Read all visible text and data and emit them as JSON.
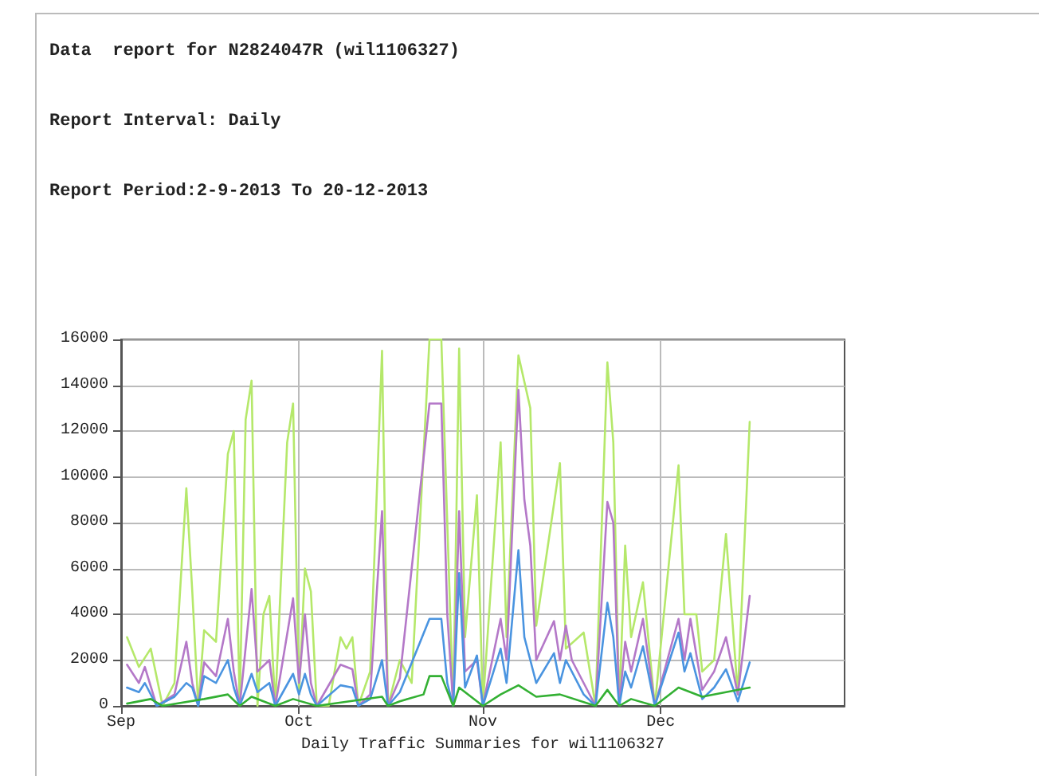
{
  "chart_data": {
    "type": "line",
    "title": "Data  report for N2824047R (wil1106327)",
    "subtitle": "Report Interval: Daily",
    "annotations": [
      "Report Period:2-9-2013 To 20-12-2013"
    ],
    "xlabel": "Daily Traffic Summaries for wil1106327",
    "xlim": [
      "2013-09-01",
      "2014-01-01"
    ],
    "xticks": [
      {
        "value": "2013-09-01",
        "label": "Sep"
      },
      {
        "value": "2013-10-01",
        "label": "Oct"
      },
      {
        "value": "2013-11-01",
        "label": "Nov"
      },
      {
        "value": "2013-12-01",
        "label": "Dec"
      }
    ],
    "ylim": [
      0,
      16000
    ],
    "yticks": [
      0,
      2000,
      4000,
      6000,
      8000,
      10000,
      12000,
      14000,
      16000
    ],
    "grid": true,
    "marker": "none",
    "line_style": "solid",
    "series": [
      {
        "color": "#b5e86a",
        "x": [
          "2013-09-02",
          "2013-09-04",
          "2013-09-06",
          "2013-09-08",
          "2013-09-10",
          "2013-09-12",
          "2013-09-13",
          "2013-09-14",
          "2013-09-15",
          "2013-09-17",
          "2013-09-19",
          "2013-09-20",
          "2013-09-21",
          "2013-09-22",
          "2013-09-23",
          "2013-09-24",
          "2013-09-25",
          "2013-09-26",
          "2013-09-27",
          "2013-09-29",
          "2013-09-30",
          "2013-10-01",
          "2013-10-02",
          "2013-10-03",
          "2013-10-04",
          "2013-10-06",
          "2013-10-08",
          "2013-10-09",
          "2013-10-10",
          "2013-10-11",
          "2013-10-13",
          "2013-10-15",
          "2013-10-16",
          "2013-10-18",
          "2013-10-20",
          "2013-10-23",
          "2013-10-25",
          "2013-10-27",
          "2013-10-28",
          "2013-10-29",
          "2013-10-31",
          "2013-11-01",
          "2013-11-04",
          "2013-11-05",
          "2013-11-07",
          "2013-11-09",
          "2013-11-10",
          "2013-11-14",
          "2013-11-15",
          "2013-11-18",
          "2013-11-20",
          "2013-11-22",
          "2013-11-23",
          "2013-11-24",
          "2013-11-25",
          "2013-11-26",
          "2013-11-28",
          "2013-11-30",
          "2013-12-04",
          "2013-12-05",
          "2013-12-07",
          "2013-12-08",
          "2013-12-10",
          "2013-12-12",
          "2013-12-14",
          "2013-12-16"
        ],
        "values": [
          3000,
          1700,
          2500,
          0,
          1000,
          9500,
          5000,
          0,
          3300,
          2800,
          11000,
          12000,
          0,
          12500,
          14200,
          0,
          4000,
          4800,
          0,
          11500,
          13200,
          500,
          6000,
          5000,
          0,
          0,
          3000,
          2500,
          3000,
          0,
          1500,
          15500,
          0,
          2000,
          1000,
          16000,
          16000,
          0,
          15600,
          3000,
          9200,
          0,
          11500,
          3000,
          15300,
          13000,
          3500,
          10600,
          2500,
          3200,
          0,
          15000,
          11500,
          0,
          7000,
          3000,
          5400,
          0,
          10500,
          4000,
          4000,
          1500,
          2000,
          7500,
          500,
          12400
        ]
      },
      {
        "color": "#b478c8",
        "x": [
          "2013-09-02",
          "2013-09-04",
          "2013-09-05",
          "2013-09-07",
          "2013-09-10",
          "2013-09-12",
          "2013-09-13",
          "2013-09-14",
          "2013-09-15",
          "2013-09-17",
          "2013-09-19",
          "2013-09-20",
          "2013-09-21",
          "2013-09-23",
          "2013-09-24",
          "2013-09-26",
          "2013-09-27",
          "2013-09-30",
          "2013-10-01",
          "2013-10-02",
          "2013-10-03",
          "2013-10-04",
          "2013-10-08",
          "2013-10-10",
          "2013-10-11",
          "2013-10-13",
          "2013-10-15",
          "2013-10-16",
          "2013-10-18",
          "2013-10-23",
          "2013-10-25",
          "2013-10-26",
          "2013-10-27",
          "2013-10-28",
          "2013-10-29",
          "2013-10-31",
          "2013-11-01",
          "2013-11-04",
          "2013-11-05",
          "2013-11-07",
          "2013-11-08",
          "2013-11-09",
          "2013-11-10",
          "2013-11-13",
          "2013-11-14",
          "2013-11-15",
          "2013-11-16",
          "2013-11-18",
          "2013-11-20",
          "2013-11-22",
          "2013-11-23",
          "2013-11-24",
          "2013-11-25",
          "2013-11-26",
          "2013-11-28",
          "2013-11-30",
          "2013-12-04",
          "2013-12-05",
          "2013-12-06",
          "2013-12-08",
          "2013-12-10",
          "2013-12-12",
          "2013-12-14",
          "2013-12-16"
        ],
        "values": [
          1800,
          1000,
          1700,
          0,
          500,
          2800,
          1000,
          0,
          1900,
          1300,
          3800,
          1500,
          0,
          5100,
          1500,
          2000,
          0,
          4700,
          1000,
          4000,
          1000,
          0,
          1800,
          1600,
          0,
          500,
          8500,
          0,
          1200,
          13200,
          13200,
          4000,
          0,
          8500,
          1500,
          2000,
          0,
          3800,
          2000,
          13800,
          9000,
          7000,
          2000,
          3700,
          2000,
          3500,
          2000,
          1000,
          0,
          8900,
          8000,
          0,
          2800,
          1500,
          3800,
          0,
          3800,
          2000,
          3800,
          700,
          1500,
          3000,
          500,
          4800
        ]
      },
      {
        "color": "#4a94e0",
        "x": [
          "2013-09-02",
          "2013-09-04",
          "2013-09-05",
          "2013-09-07",
          "2013-09-10",
          "2013-09-12",
          "2013-09-13",
          "2013-09-14",
          "2013-09-15",
          "2013-09-17",
          "2013-09-19",
          "2013-09-20",
          "2013-09-21",
          "2013-09-23",
          "2013-09-24",
          "2013-09-26",
          "2013-09-27",
          "2013-09-30",
          "2013-10-01",
          "2013-10-02",
          "2013-10-03",
          "2013-10-04",
          "2013-10-08",
          "2013-10-10",
          "2013-10-11",
          "2013-10-13",
          "2013-10-15",
          "2013-10-16",
          "2013-10-18",
          "2013-10-23",
          "2013-10-25",
          "2013-10-26",
          "2013-10-27",
          "2013-10-28",
          "2013-10-29",
          "2013-10-31",
          "2013-11-01",
          "2013-11-04",
          "2013-11-05",
          "2013-11-07",
          "2013-11-08",
          "2013-11-10",
          "2013-11-13",
          "2013-11-14",
          "2013-11-15",
          "2013-11-18",
          "2013-11-20",
          "2013-11-22",
          "2013-11-23",
          "2013-11-24",
          "2013-11-25",
          "2013-11-26",
          "2013-11-28",
          "2013-11-30",
          "2013-12-04",
          "2013-12-05",
          "2013-12-06",
          "2013-12-08",
          "2013-12-10",
          "2013-12-12",
          "2013-12-14",
          "2013-12-16"
        ],
        "values": [
          800,
          600,
          1000,
          0,
          400,
          1000,
          800,
          0,
          1300,
          1000,
          2000,
          800,
          0,
          1400,
          600,
          1000,
          0,
          1400,
          500,
          1400,
          500,
          0,
          900,
          800,
          0,
          300,
          2000,
          0,
          600,
          3800,
          3800,
          1000,
          0,
          5800,
          800,
          2200,
          0,
          2500,
          1000,
          6800,
          3000,
          1000,
          2300,
          1000,
          2000,
          500,
          0,
          4500,
          3000,
          0,
          1500,
          800,
          2600,
          0,
          3200,
          1500,
          2300,
          300,
          800,
          1600,
          200,
          1900
        ]
      },
      {
        "color": "#33b033",
        "x": [
          "2013-09-02",
          "2013-09-06",
          "2013-09-08",
          "2013-09-15",
          "2013-09-19",
          "2013-09-21",
          "2013-09-23",
          "2013-09-27",
          "2013-09-30",
          "2013-10-04",
          "2013-10-15",
          "2013-10-16",
          "2013-10-18",
          "2013-10-22",
          "2013-10-23",
          "2013-10-25",
          "2013-10-27",
          "2013-10-28",
          "2013-11-01",
          "2013-11-04",
          "2013-11-07",
          "2013-11-10",
          "2013-11-14",
          "2013-11-20",
          "2013-11-22",
          "2013-11-24",
          "2013-11-26",
          "2013-11-30",
          "2013-12-04",
          "2013-12-08",
          "2013-12-12",
          "2013-12-16"
        ],
        "values": [
          100,
          300,
          0,
          300,
          500,
          0,
          400,
          0,
          300,
          0,
          400,
          0,
          200,
          500,
          1300,
          1300,
          0,
          800,
          0,
          500,
          900,
          400,
          500,
          0,
          700,
          0,
          300,
          0,
          800,
          400,
          600,
          800
        ]
      }
    ]
  }
}
